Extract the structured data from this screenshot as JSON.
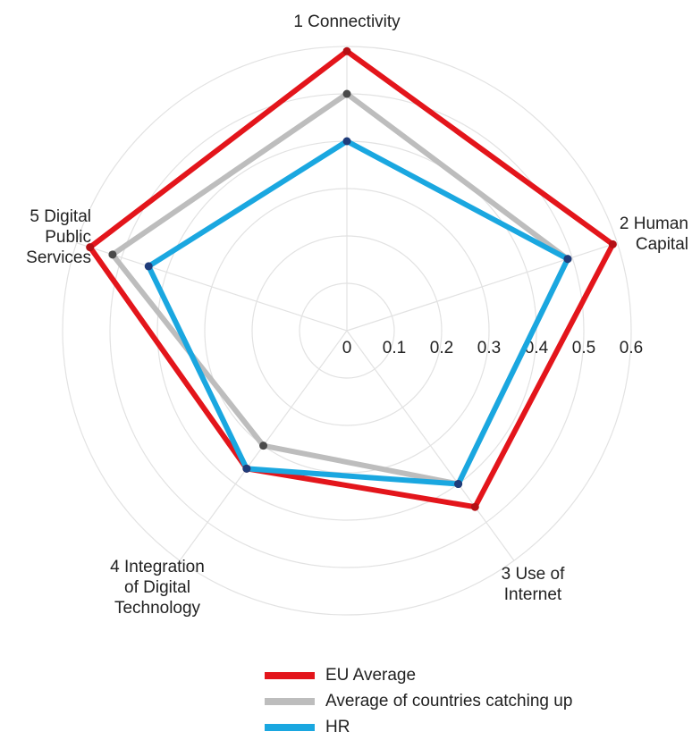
{
  "chart_data": {
    "type": "radar",
    "title": "",
    "axes": [
      "1 Connectivity",
      "2 Human Capital",
      "3 Use of Internet",
      "4 Integration of Digital Technology",
      "5 Digital Public Services"
    ],
    "axis_label_lines": [
      [
        "1 Connectivity"
      ],
      [
        "2 Human",
        "Capital"
      ],
      [
        "3 Use of",
        "Internet"
      ],
      [
        "4 Integration",
        "of Digital",
        "Technology"
      ],
      [
        "5 Digital",
        "Public",
        "Services"
      ]
    ],
    "ticks": [
      "0",
      "0.1",
      "0.2",
      "0.3",
      "0.4",
      "0.5",
      "0.6"
    ],
    "range": [
      0,
      0.6
    ],
    "grid": true,
    "legend_position": "bottom",
    "series": [
      {
        "name": "EU Average",
        "color": "#e3151b",
        "values": [
          0.59,
          0.59,
          0.46,
          0.36,
          0.57
        ]
      },
      {
        "name": "Average of countries catching up",
        "color": "#bdbdbd",
        "values": [
          0.5,
          0.49,
          0.4,
          0.3,
          0.52
        ]
      },
      {
        "name": "HR",
        "color": "#1aa7e0",
        "values": [
          0.4,
          0.49,
          0.4,
          0.36,
          0.44
        ]
      }
    ]
  }
}
